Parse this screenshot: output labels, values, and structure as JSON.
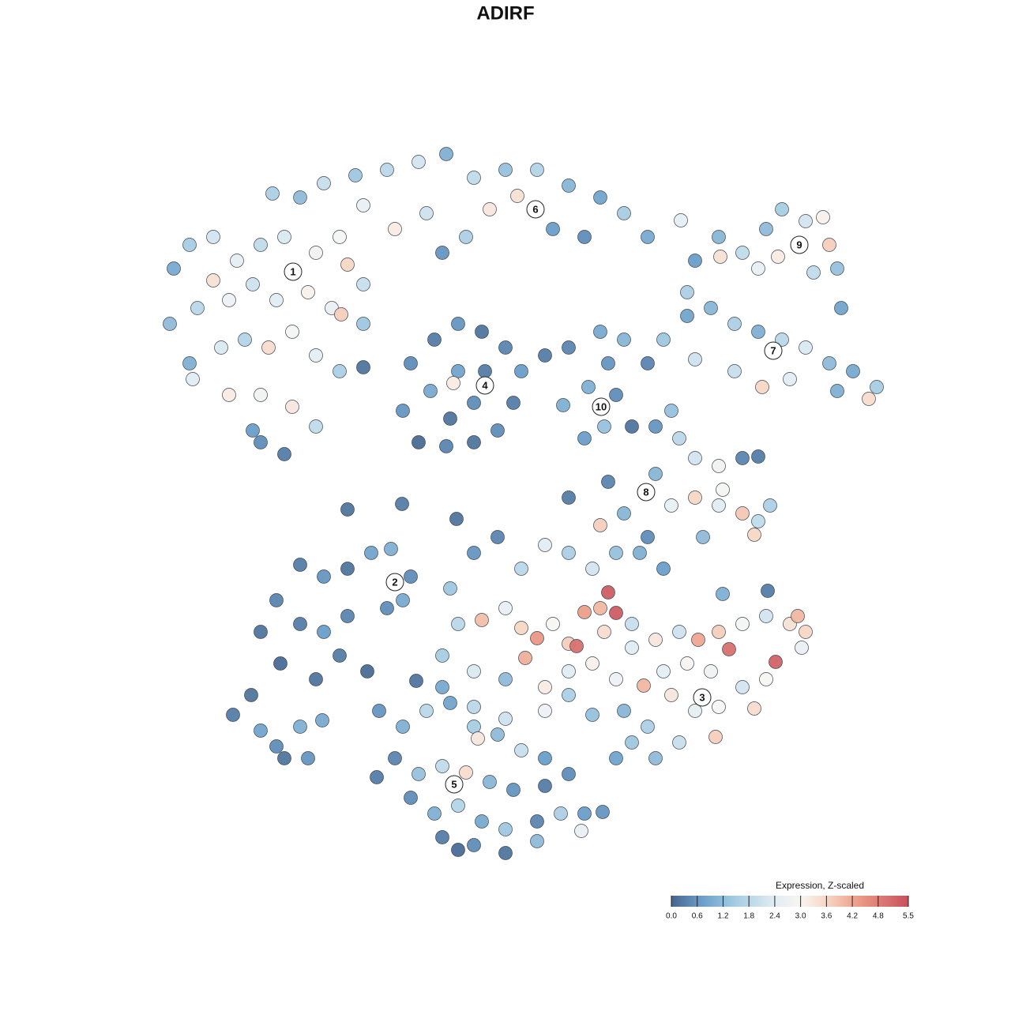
{
  "chart_data": {
    "type": "scatter",
    "title": "ADIRF",
    "xlim": [
      0,
      1280
    ],
    "ylim": [
      1280,
      0
    ],
    "colorbar": {
      "title": "Expression, Z-scaled",
      "lim": [
        0,
        5.5
      ],
      "ticks": [
        {
          "value": 0,
          "label": "0.0"
        },
        0.6,
        1.2,
        1.8,
        2.4,
        {
          "value": 3,
          "label": "3.0"
        },
        3.6,
        4.2,
        4.8,
        5.5
      ],
      "colorscale": [
        [
          0,
          "#46648c"
        ],
        [
          0.7,
          "#6a9ec9"
        ],
        [
          1.5,
          "#a6cde3"
        ],
        [
          2.4,
          "#e1ecf3"
        ],
        [
          3.0,
          "#f8f5f2"
        ],
        [
          3.6,
          "#f7d7c5"
        ],
        [
          4.3,
          "#ec9f89"
        ],
        [
          5.5,
          "#c9505c"
        ]
      ]
    },
    "clusters": [
      {
        "label": "1",
        "x": 371,
        "y": 344
      },
      {
        "label": "2",
        "x": 500,
        "y": 737
      },
      {
        "label": "3",
        "x": 889,
        "y": 883
      },
      {
        "label": "4",
        "x": 614,
        "y": 488
      },
      {
        "label": "5",
        "x": 575,
        "y": 993
      },
      {
        "label": "6",
        "x": 678,
        "y": 265
      },
      {
        "label": "7",
        "x": 979,
        "y": 444
      },
      {
        "label": "8",
        "x": 818,
        "y": 623
      },
      {
        "label": "9",
        "x": 1012,
        "y": 310
      },
      {
        "label": "10",
        "x": 761,
        "y": 515
      }
    ],
    "x": [
      345,
      380,
      410,
      450,
      490,
      530,
      565,
      600,
      640,
      680,
      720,
      760,
      790,
      820,
      620,
      655,
      700,
      740,
      590,
      540,
      500,
      460,
      430,
      560,
      220,
      240,
      270,
      300,
      330,
      360,
      400,
      440,
      460,
      215,
      250,
      290,
      320,
      350,
      390,
      420,
      432,
      460,
      240,
      280,
      310,
      340,
      370,
      400,
      430,
      290,
      330,
      370,
      400,
      330,
      360,
      320,
      244,
      270,
      520,
      550,
      580,
      610,
      640,
      660,
      650,
      630,
      600,
      565,
      530,
      510,
      545,
      580,
      614,
      600,
      570,
      574,
      690,
      720,
      460,
      760,
      790,
      770,
      745,
      780,
      765,
      740,
      713,
      820,
      800,
      840,
      870,
      900,
      930,
      960,
      990,
      1020,
      1050,
      1080,
      1110,
      1100,
      965,
      930,
      1000,
      1060,
      880,
      880,
      910,
      940,
      970,
      990,
      1020,
      1042,
      1050,
      1060,
      1030,
      985,
      912,
      960,
      1065,
      862,
      870,
      830,
      850,
      860,
      880,
      910,
      940,
      960,
      830,
      850,
      880,
      910,
      940,
      960,
      975,
      890,
      955,
      915,
      770,
      790,
      760,
      720,
      330,
      350,
      380,
      410,
      440,
      470,
      495,
      520,
      355,
      380,
      410,
      440,
      400,
      430,
      465,
      510,
      490,
      440,
      509,
      578,
      295,
      330,
      350,
      380,
      360,
      390,
      408,
      318,
      570,
      600,
      630,
      660,
      690,
      720,
      750,
      780,
      810,
      840,
      580,
      610,
      640,
      660,
      680,
      700,
      720,
      740,
      730,
      760,
      770,
      780,
      765,
      800,
      560,
      600,
      640,
      665,
      690,
      720,
      750,
      780,
      560,
      600,
      640,
      690,
      720,
      750,
      820,
      527,
      800,
      830,
      860,
      884,
      910,
      940,
      970,
      1000,
      1020,
      1010,
      1015,
      982,
      923,
      900,
      870,
      840,
      815,
      850,
      880,
      910,
      940,
      970,
      955,
      906,
      860,
      820,
      790,
      800,
      780,
      830,
      972,
      915,
      480,
      510,
      540,
      570,
      600,
      630,
      660,
      690,
      720,
      500,
      530,
      560,
      590,
      620,
      650,
      690,
      520,
      550,
      580,
      610,
      640,
      680,
      710,
      740,
      736,
      560,
      600,
      640,
      680,
      580,
      763,
      605,
      477
    ],
    "y": [
      245,
      250,
      232,
      222,
      215,
      205,
      195,
      225,
      215,
      215,
      235,
      250,
      270,
      300,
      265,
      248,
      290,
      300,
      300,
      270,
      290,
      260,
      300,
      320,
      340,
      310,
      300,
      330,
      310,
      300,
      320,
      335,
      360,
      410,
      390,
      380,
      360,
      380,
      370,
      390,
      398,
      410,
      460,
      440,
      430,
      440,
      420,
      450,
      470,
      500,
      500,
      515,
      540,
      560,
      575,
      545,
      480,
      355,
      460,
      430,
      410,
      420,
      440,
      470,
      510,
      545,
      560,
      565,
      560,
      520,
      495,
      470,
      470,
      510,
      530,
      485,
      450,
      440,
      465,
      420,
      430,
      460,
      490,
      500,
      540,
      555,
      513,
      460,
      540,
      430,
      400,
      390,
      410,
      420,
      430,
      440,
      460,
      470,
      490,
      505,
      490,
      470,
      480,
      495,
      455,
      330,
      300,
      320,
      290,
      265,
      280,
      275,
      310,
      340,
      345,
      325,
      325,
      340,
      390,
      279,
      370,
      540,
      520,
      555,
      580,
      590,
      580,
      578,
      600,
      640,
      630,
      640,
      650,
      660,
      640,
      680,
      677,
      620,
      610,
      650,
      665,
      630,
      800,
      760,
      715,
      730,
      720,
      700,
      695,
      730,
      840,
      790,
      800,
      780,
      860,
      830,
      850,
      760,
      770,
      645,
      638,
      657,
      905,
      925,
      945,
      920,
      960,
      960,
      912,
      880,
      745,
      700,
      680,
      720,
      690,
      700,
      720,
      700,
      700,
      720,
      790,
      785,
      770,
      795,
      808,
      790,
      815,
      775,
      818,
      770,
      750,
      776,
      800,
      790,
      830,
      850,
      860,
      833,
      870,
      850,
      840,
      860,
      870,
      895,
      910,
      900,
      880,
      905,
      680,
      862,
      820,
      810,
      800,
      810,
      800,
      790,
      780,
      790,
      800,
      780,
      820,
      838,
      822,
      850,
      840,
      850,
      868,
      880,
      900,
      895,
      870,
      860,
      897,
      933,
      940,
      920,
      900,
      940,
      960,
      960,
      748,
      752,
      900,
      920,
      900,
      890,
      920,
      930,
      950,
      960,
      980,
      960,
      980,
      970,
      978,
      990,
      1000,
      995,
      1010,
      1030,
      1020,
      1040,
      1050,
      1040,
      1030,
      1030,
      1052,
      1060,
      1070,
      1080,
      1065,
      1076,
      1028,
      935,
      984
    ],
    "values": [
      1.6,
      1.2,
      2.0,
      1.4,
      1.8,
      2.2,
      1.0,
      1.9,
      1.3,
      1.7,
      1.1,
      0.8,
      1.5,
      0.9,
      3.3,
      3.4,
      0.7,
      0.5,
      1.6,
      2.1,
      3.2,
      2.6,
      2.9,
      0.6,
      0.9,
      1.5,
      2.2,
      2.5,
      1.9,
      2.3,
      2.8,
      3.6,
      2.0,
      1.2,
      1.8,
      2.7,
      2.1,
      2.4,
      3.1,
      2.6,
      3.7,
      1.4,
      1.0,
      2.3,
      1.7,
      3.5,
      2.9,
      2.5,
      1.6,
      3.2,
      2.8,
      3.3,
      1.9,
      0.5,
      0.3,
      0.7,
      2.4,
      3.4,
      0.5,
      0.3,
      0.6,
      0.2,
      0.4,
      0.7,
      0.3,
      0.5,
      0.2,
      0.4,
      0.1,
      0.6,
      0.9,
      0.8,
      0.3,
      0.5,
      0.2,
      3.2,
      0.3,
      0.4,
      0.2,
      0.9,
      1.1,
      0.6,
      1.0,
      0.5,
      1.3,
      0.7,
      1.0,
      0.4,
      0.2,
      1.4,
      0.8,
      1.1,
      1.6,
      1.0,
      1.8,
      2.3,
      1.2,
      0.9,
      1.5,
      3.5,
      3.6,
      2.0,
      2.4,
      1.0,
      2.1,
      0.7,
      1.1,
      1.9,
      1.2,
      1.5,
      2.2,
      3.1,
      3.7,
      1.3,
      1.9,
      3.2,
      3.4,
      2.6,
      0.8,
      2.5,
      1.6,
      0.6,
      1.3,
      1.8,
      2.2,
      2.8,
      0.4,
      0.3,
      1.1,
      2.6,
      3.6,
      2.4,
      3.8,
      1.9,
      1.6,
      1.2,
      3.6,
      2.9,
      0.4,
      1.1,
      3.7,
      0.3,
      0.2,
      0.4,
      0.3,
      0.6,
      0.2,
      0.8,
      1.0,
      0.5,
      0.1,
      0.3,
      0.7,
      0.4,
      0.2,
      0.3,
      0.1,
      0.9,
      0.5,
      0.2,
      0.3,
      0.2,
      0.3,
      0.8,
      0.5,
      1.0,
      0.2,
      0.6,
      0.9,
      0.2,
      1.4,
      0.6,
      0.4,
      1.8,
      2.4,
      1.6,
      2.2,
      1.3,
      1.0,
      0.7,
      1.8,
      3.9,
      2.6,
      3.6,
      4.4,
      3.0,
      3.7,
      4.3,
      5.0,
      4.0,
      5.3,
      5.3,
      3.5,
      2.0,
      1.5,
      2.3,
      1.2,
      4.1,
      3.2,
      2.4,
      3.1,
      2.7,
      0.9,
      1.8,
      2.1,
      2.7,
      1.6,
      1.3,
      0.5,
      0.2,
      2.4,
      3.3,
      2.1,
      4.2,
      3.7,
      2.9,
      2.2,
      3.4,
      3.6,
      4.0,
      2.6,
      5.2,
      5.0,
      2.8,
      3.0,
      2.5,
      4.0,
      3.3,
      2.5,
      3.0,
      2.2,
      3.0,
      3.5,
      3.7,
      2.0,
      1.6,
      1.1,
      1.4,
      0.8,
      1.2,
      0.3,
      1.0,
      0.6,
      1.0,
      1.8,
      0.8,
      1.5,
      1.2,
      2.0,
      0.7,
      0.5,
      0.4,
      1.3,
      1.9,
      3.5,
      1.1,
      0.6,
      0.3,
      0.5,
      1.0,
      1.7,
      0.9,
      1.4,
      0.4,
      1.6,
      0.7,
      2.6,
      0.3,
      0.5,
      0.2,
      1.2,
      0.1,
      0.6,
      3.3,
      0.3
    ]
  }
}
